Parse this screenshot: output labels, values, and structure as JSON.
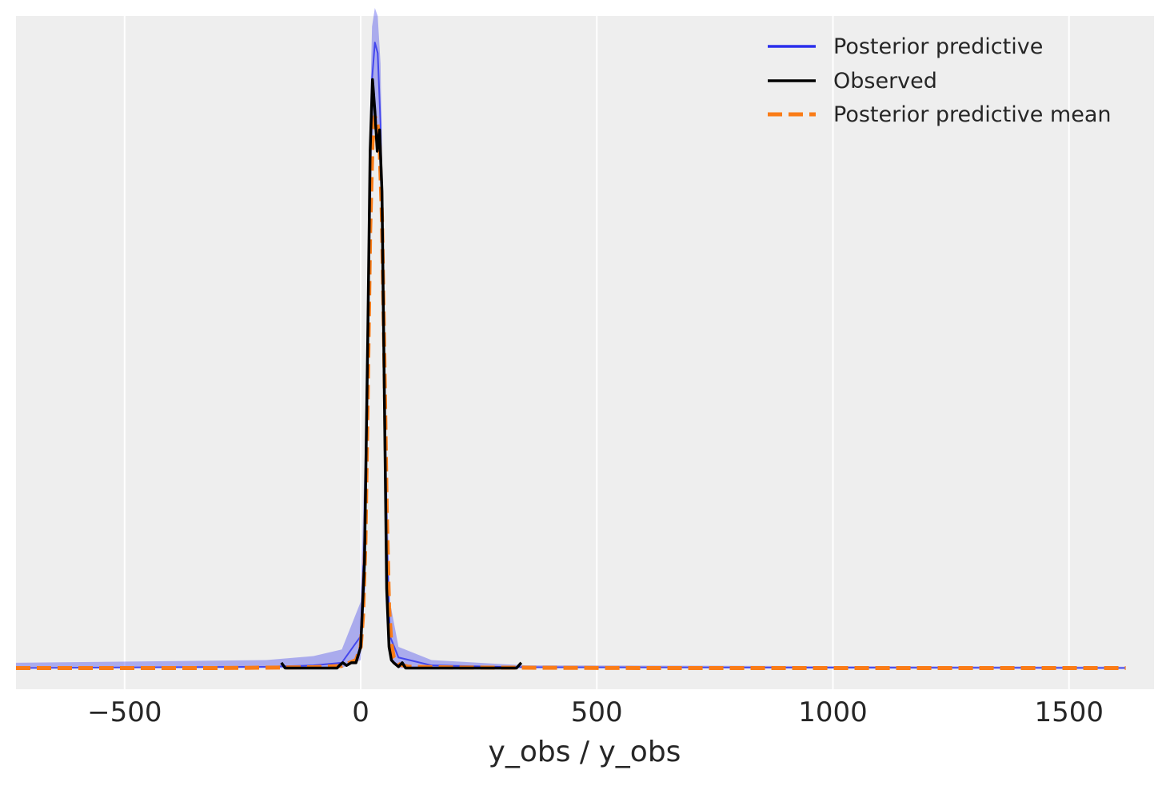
{
  "chart_data": {
    "type": "line",
    "title": "",
    "xlabel": "y_obs / y_obs",
    "ylabel": "",
    "xlim": [
      -730,
      1680
    ],
    "ylim": [
      -0.0008,
      0.0246
    ],
    "xticks": [
      -500,
      0,
      500,
      1000,
      1500
    ],
    "xtick_labels": [
      "−500",
      "0",
      "500",
      "1000",
      "1500"
    ],
    "grid": "vertical",
    "legend_position": "top-right",
    "colors": {
      "background": "#eeeeee",
      "grid": "#ffffff",
      "posterior_predictive": "#2a2eec",
      "observed": "#000000",
      "posterior_predictive_mean": "#fa7c17"
    },
    "legend": [
      {
        "label": "Posterior predictive",
        "color": "#2a2eec",
        "style": "solid"
      },
      {
        "label": "Observed",
        "color": "#000000",
        "style": "solid"
      },
      {
        "label": "Posterior predictive mean",
        "color": "#fa7c17",
        "style": "dashed"
      }
    ],
    "series": [
      {
        "name": "Posterior predictive",
        "x": [
          -730,
          -200,
          -100,
          -40,
          0,
          10,
          18,
          24,
          30,
          36,
          42,
          48,
          55,
          62,
          80,
          150,
          350,
          1620
        ],
        "y": [
          0,
          5e-05,
          0.0001,
          0.0002,
          0.0012,
          0.006,
          0.017,
          0.0222,
          0.0236,
          0.0232,
          0.0205,
          0.014,
          0.005,
          0.0012,
          0.0004,
          0.0001,
          3e-05,
          0
        ],
        "y_upper": [
          0.0002,
          0.0003,
          0.00045,
          0.0007,
          0.0025,
          0.009,
          0.0195,
          0.0242,
          0.0249,
          0.0246,
          0.0228,
          0.0165,
          0.0075,
          0.0025,
          0.0008,
          0.0003,
          0.0001,
          5e-05
        ],
        "y_lower": [
          0,
          0,
          0,
          0,
          0.0003,
          0.003,
          0.0135,
          0.0195,
          0.0208,
          0.0205,
          0.018,
          0.0115,
          0.0028,
          0.0004,
          0,
          0,
          0,
          0
        ]
      },
      {
        "name": "Observed",
        "x": [
          -168,
          -160,
          -100,
          -50,
          -45,
          -38,
          -30,
          -20,
          -10,
          0,
          8,
          15,
          20,
          25,
          30,
          35,
          40,
          45,
          50,
          55,
          60,
          65,
          70,
          80,
          88,
          95,
          110,
          200,
          330,
          340
        ],
        "y": [
          0.0002,
          0,
          0,
          0,
          0.0001,
          0.0002,
          0.0001,
          0.0002,
          0.0002,
          0.0008,
          0.004,
          0.0125,
          0.0195,
          0.0222,
          0.021,
          0.0195,
          0.0203,
          0.018,
          0.0105,
          0.003,
          0.0008,
          0.0003,
          0.0002,
          5e-05,
          0.0002,
          0,
          0,
          0,
          0,
          0.0002
        ]
      },
      {
        "name": "Posterior predictive mean",
        "x": [
          -730,
          -300,
          -100,
          -40,
          -10,
          0,
          5,
          10,
          15,
          20,
          25,
          30,
          35,
          40,
          45,
          50,
          55,
          60,
          65,
          70,
          80,
          100,
          200,
          600,
          1620
        ],
        "y": [
          0,
          0,
          3e-05,
          8e-05,
          0.0003,
          0.0008,
          0.002,
          0.0048,
          0.0105,
          0.0165,
          0.0198,
          0.0208,
          0.0206,
          0.0197,
          0.017,
          0.0118,
          0.006,
          0.0023,
          0.0009,
          0.0004,
          0.00015,
          5e-05,
          2e-05,
          0,
          0
        ]
      }
    ]
  }
}
